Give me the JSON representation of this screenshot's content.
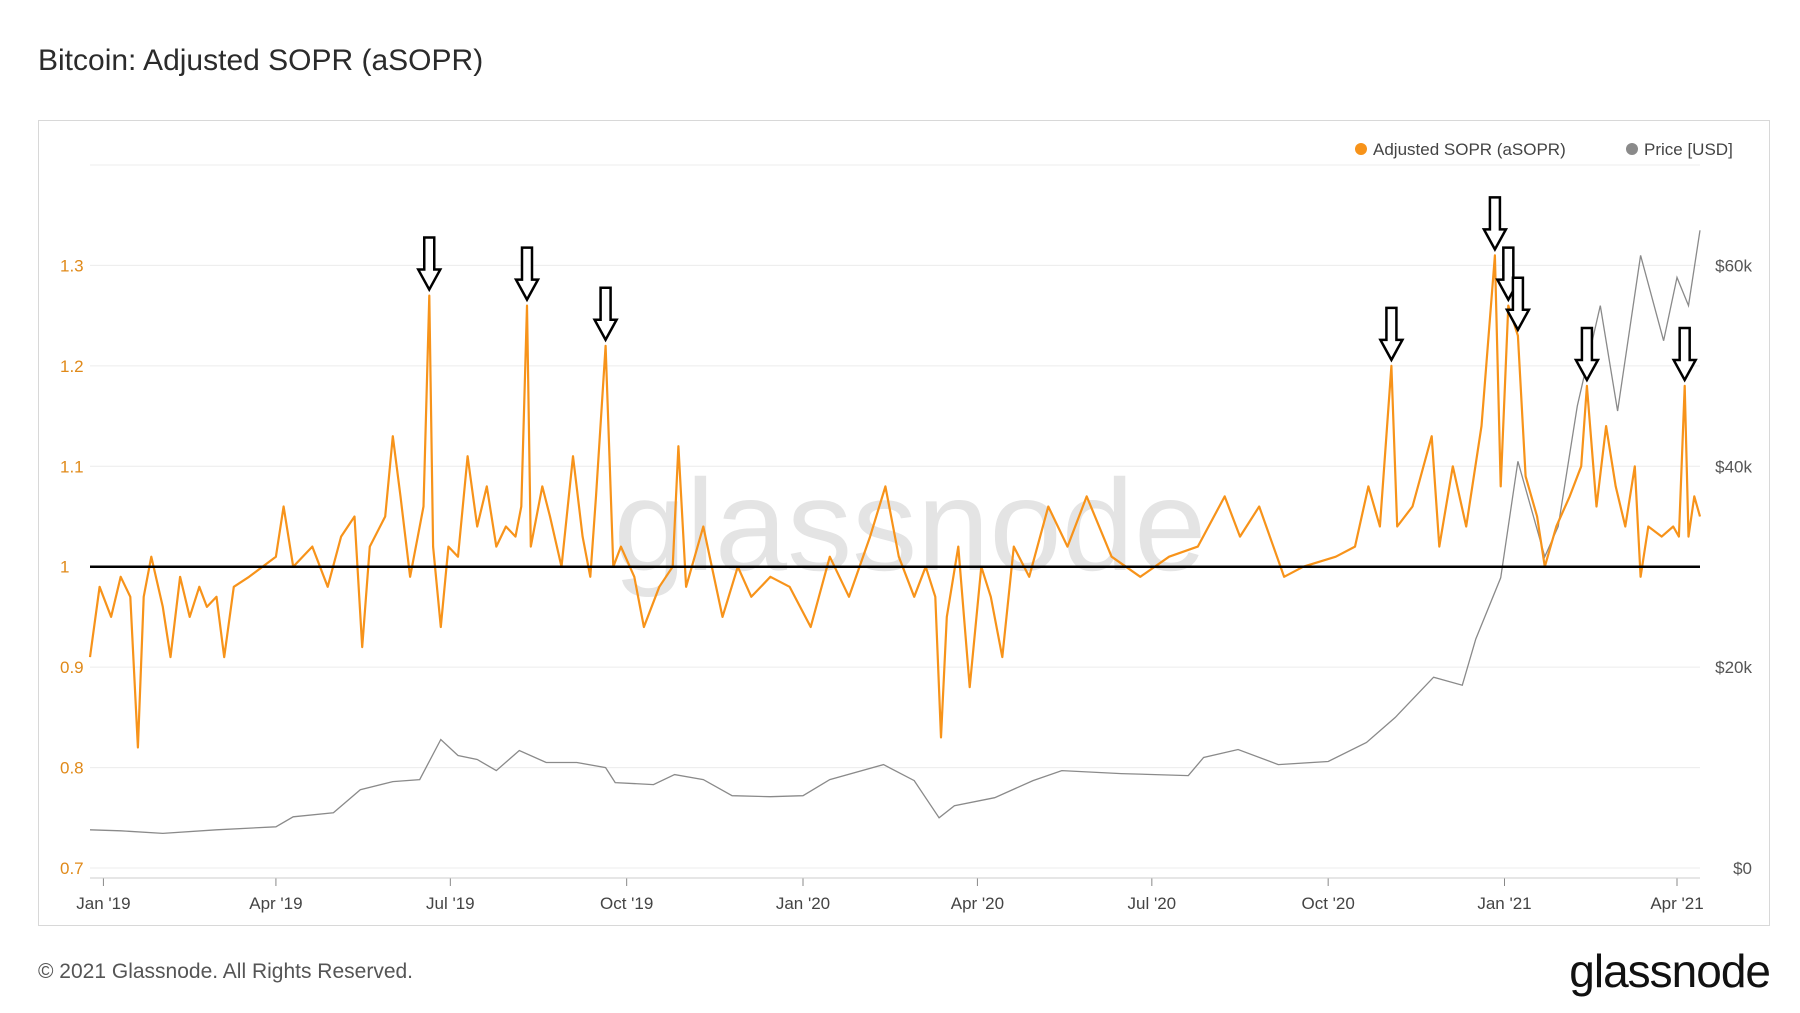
{
  "title": "Bitcoin: Adjusted SOPR (aSOPR)",
  "footer": "© 2021 Glassnode. All Rights Reserved.",
  "brand": "glassnode",
  "watermark": "glassnode",
  "colors": {
    "sopr": "#f7931a",
    "price": "#8a8a8a",
    "baseline": "#000000",
    "grid": "#ececec",
    "left_axis": "#e08a1a"
  },
  "chart_data": {
    "type": "line",
    "x_axis_labels": [
      "Jan '19",
      "Apr '19",
      "Jul '19",
      "Oct '19",
      "Jan '20",
      "Apr '20",
      "Jul '20",
      "Oct '20",
      "Jan '21",
      "Apr '21"
    ],
    "x_axis_dates": [
      "2019-01-01",
      "2019-04-01",
      "2019-07-01",
      "2019-10-01",
      "2020-01-01",
      "2020-04-01",
      "2020-07-01",
      "2020-10-01",
      "2021-01-01",
      "2021-04-01"
    ],
    "x_range": [
      "2018-12-25",
      "2021-04-13"
    ],
    "left_axis": {
      "ticks": [
        0.7,
        0.8,
        0.9,
        1,
        1.1,
        1.2,
        1.3
      ],
      "tick_labels": [
        "0.7",
        "0.8",
        "0.9",
        "1",
        "1.1",
        "1.2",
        "1.3"
      ],
      "range": [
        0.7,
        1.4
      ]
    },
    "right_axis": {
      "ticks": [
        0,
        20000,
        40000,
        60000
      ],
      "tick_labels": [
        "$0",
        "$20k",
        "$40k",
        "$60k"
      ],
      "range": [
        0,
        60000
      ]
    },
    "grid": true,
    "legend_position": "top-right",
    "reference_line": 1,
    "series": [
      {
        "name": "Adjusted SOPR (aSOPR)",
        "axis": "left",
        "points": [
          [
            "2018-12-25",
            0.91
          ],
          [
            "2018-12-30",
            0.98
          ],
          [
            "2019-01-05",
            0.95
          ],
          [
            "2019-01-10",
            0.99
          ],
          [
            "2019-01-15",
            0.97
          ],
          [
            "2019-01-19",
            0.82
          ],
          [
            "2019-01-22",
            0.97
          ],
          [
            "2019-01-26",
            1.01
          ],
          [
            "2019-02-01",
            0.96
          ],
          [
            "2019-02-05",
            0.91
          ],
          [
            "2019-02-10",
            0.99
          ],
          [
            "2019-02-15",
            0.95
          ],
          [
            "2019-02-20",
            0.98
          ],
          [
            "2019-02-24",
            0.96
          ],
          [
            "2019-03-01",
            0.97
          ],
          [
            "2019-03-05",
            0.91
          ],
          [
            "2019-03-10",
            0.98
          ],
          [
            "2019-03-18",
            0.99
          ],
          [
            "2019-03-25",
            1.0
          ],
          [
            "2019-04-01",
            1.01
          ],
          [
            "2019-04-05",
            1.06
          ],
          [
            "2019-04-10",
            1.0
          ],
          [
            "2019-04-20",
            1.02
          ],
          [
            "2019-04-28",
            0.98
          ],
          [
            "2019-05-05",
            1.03
          ],
          [
            "2019-05-12",
            1.05
          ],
          [
            "2019-05-16",
            0.92
          ],
          [
            "2019-05-20",
            1.02
          ],
          [
            "2019-05-28",
            1.05
          ],
          [
            "2019-06-01",
            1.13
          ],
          [
            "2019-06-05",
            1.07
          ],
          [
            "2019-06-10",
            0.99
          ],
          [
            "2019-06-14",
            1.03
          ],
          [
            "2019-06-17",
            1.06
          ],
          [
            "2019-06-20",
            1.27
          ],
          [
            "2019-06-22",
            1.02
          ],
          [
            "2019-06-26",
            0.94
          ],
          [
            "2019-06-30",
            1.02
          ],
          [
            "2019-07-05",
            1.01
          ],
          [
            "2019-07-10",
            1.11
          ],
          [
            "2019-07-15",
            1.04
          ],
          [
            "2019-07-20",
            1.08
          ],
          [
            "2019-07-25",
            1.02
          ],
          [
            "2019-07-30",
            1.04
          ],
          [
            "2019-08-04",
            1.03
          ],
          [
            "2019-08-07",
            1.06
          ],
          [
            "2019-08-10",
            1.26
          ],
          [
            "2019-08-12",
            1.02
          ],
          [
            "2019-08-18",
            1.08
          ],
          [
            "2019-08-22",
            1.05
          ],
          [
            "2019-08-28",
            1.0
          ],
          [
            "2019-09-03",
            1.11
          ],
          [
            "2019-09-08",
            1.03
          ],
          [
            "2019-09-12",
            0.99
          ],
          [
            "2019-09-15",
            1.07
          ],
          [
            "2019-09-20",
            1.22
          ],
          [
            "2019-09-24",
            1.0
          ],
          [
            "2019-09-28",
            1.02
          ],
          [
            "2019-10-05",
            0.99
          ],
          [
            "2019-10-10",
            0.94
          ],
          [
            "2019-10-18",
            0.98
          ],
          [
            "2019-10-25",
            1.0
          ],
          [
            "2019-10-28",
            1.12
          ],
          [
            "2019-11-01",
            0.98
          ],
          [
            "2019-11-10",
            1.04
          ],
          [
            "2019-11-20",
            0.95
          ],
          [
            "2019-11-28",
            1.0
          ],
          [
            "2019-12-05",
            0.97
          ],
          [
            "2019-12-15",
            0.99
          ],
          [
            "2019-12-25",
            0.98
          ],
          [
            "2020-01-05",
            0.94
          ],
          [
            "2020-01-15",
            1.01
          ],
          [
            "2020-01-25",
            0.97
          ],
          [
            "2020-02-05",
            1.03
          ],
          [
            "2020-02-13",
            1.08
          ],
          [
            "2020-02-20",
            1.01
          ],
          [
            "2020-02-28",
            0.97
          ],
          [
            "2020-03-05",
            1.0
          ],
          [
            "2020-03-10",
            0.97
          ],
          [
            "2020-03-13",
            0.83
          ],
          [
            "2020-03-16",
            0.95
          ],
          [
            "2020-03-22",
            1.02
          ],
          [
            "2020-03-28",
            0.88
          ],
          [
            "2020-04-03",
            1.0
          ],
          [
            "2020-04-08",
            0.97
          ],
          [
            "2020-04-14",
            0.91
          ],
          [
            "2020-04-20",
            1.02
          ],
          [
            "2020-04-28",
            0.99
          ],
          [
            "2020-05-08",
            1.06
          ],
          [
            "2020-05-18",
            1.02
          ],
          [
            "2020-05-28",
            1.07
          ],
          [
            "2020-06-10",
            1.01
          ],
          [
            "2020-06-25",
            0.99
          ],
          [
            "2020-07-10",
            1.01
          ],
          [
            "2020-07-25",
            1.02
          ],
          [
            "2020-08-08",
            1.07
          ],
          [
            "2020-08-16",
            1.03
          ],
          [
            "2020-08-26",
            1.06
          ],
          [
            "2020-09-08",
            0.99
          ],
          [
            "2020-09-18",
            1.0
          ],
          [
            "2020-10-05",
            1.01
          ],
          [
            "2020-10-15",
            1.02
          ],
          [
            "2020-10-22",
            1.08
          ],
          [
            "2020-10-28",
            1.04
          ],
          [
            "2020-11-03",
            1.2
          ],
          [
            "2020-11-06",
            1.04
          ],
          [
            "2020-11-14",
            1.06
          ],
          [
            "2020-11-24",
            1.13
          ],
          [
            "2020-11-28",
            1.02
          ],
          [
            "2020-12-05",
            1.1
          ],
          [
            "2020-12-12",
            1.04
          ],
          [
            "2020-12-20",
            1.14
          ],
          [
            "2020-12-27",
            1.31
          ],
          [
            "2020-12-30",
            1.08
          ],
          [
            "2021-01-03",
            1.26
          ],
          [
            "2021-01-08",
            1.23
          ],
          [
            "2021-01-12",
            1.09
          ],
          [
            "2021-01-18",
            1.05
          ],
          [
            "2021-01-22",
            1.0
          ],
          [
            "2021-01-28",
            1.04
          ],
          [
            "2021-02-04",
            1.07
          ],
          [
            "2021-02-10",
            1.1
          ],
          [
            "2021-02-13",
            1.18
          ],
          [
            "2021-02-18",
            1.06
          ],
          [
            "2021-02-23",
            1.14
          ],
          [
            "2021-02-28",
            1.08
          ],
          [
            "2021-03-05",
            1.04
          ],
          [
            "2021-03-10",
            1.1
          ],
          [
            "2021-03-13",
            0.99
          ],
          [
            "2021-03-17",
            1.04
          ],
          [
            "2021-03-24",
            1.03
          ],
          [
            "2021-03-30",
            1.04
          ],
          [
            "2021-04-02",
            1.03
          ],
          [
            "2021-04-05",
            1.18
          ],
          [
            "2021-04-07",
            1.03
          ],
          [
            "2021-04-10",
            1.07
          ],
          [
            "2021-04-13",
            1.05
          ]
        ]
      },
      {
        "name": "Price [USD]",
        "axis": "right",
        "points": [
          [
            "2018-12-25",
            3800
          ],
          [
            "2019-01-10",
            3700
          ],
          [
            "2019-02-01",
            3450
          ],
          [
            "2019-03-01",
            3800
          ],
          [
            "2019-04-01",
            4100
          ],
          [
            "2019-04-10",
            5100
          ],
          [
            "2019-05-01",
            5500
          ],
          [
            "2019-05-15",
            7800
          ],
          [
            "2019-06-01",
            8600
          ],
          [
            "2019-06-15",
            8800
          ],
          [
            "2019-06-26",
            12800
          ],
          [
            "2019-07-05",
            11200
          ],
          [
            "2019-07-15",
            10800
          ],
          [
            "2019-07-25",
            9700
          ],
          [
            "2019-08-06",
            11700
          ],
          [
            "2019-08-20",
            10500
          ],
          [
            "2019-09-05",
            10500
          ],
          [
            "2019-09-20",
            10000
          ],
          [
            "2019-09-25",
            8500
          ],
          [
            "2019-10-15",
            8300
          ],
          [
            "2019-10-26",
            9300
          ],
          [
            "2019-11-10",
            8800
          ],
          [
            "2019-11-25",
            7200
          ],
          [
            "2019-12-15",
            7100
          ],
          [
            "2020-01-01",
            7200
          ],
          [
            "2020-01-15",
            8800
          ],
          [
            "2020-02-12",
            10300
          ],
          [
            "2020-02-28",
            8700
          ],
          [
            "2020-03-12",
            5000
          ],
          [
            "2020-03-20",
            6200
          ],
          [
            "2020-04-10",
            7000
          ],
          [
            "2020-04-30",
            8700
          ],
          [
            "2020-05-15",
            9700
          ],
          [
            "2020-06-15",
            9400
          ],
          [
            "2020-07-20",
            9200
          ],
          [
            "2020-07-28",
            11000
          ],
          [
            "2020-08-15",
            11800
          ],
          [
            "2020-09-05",
            10300
          ],
          [
            "2020-10-01",
            10600
          ],
          [
            "2020-10-21",
            12500
          ],
          [
            "2020-11-05",
            15000
          ],
          [
            "2020-11-25",
            19000
          ],
          [
            "2020-12-10",
            18200
          ],
          [
            "2020-12-17",
            22800
          ],
          [
            "2020-12-30",
            28900
          ],
          [
            "2021-01-08",
            40500
          ],
          [
            "2021-01-22",
            31000
          ],
          [
            "2021-01-29",
            34000
          ],
          [
            "2021-02-08",
            46000
          ],
          [
            "2021-02-20",
            56000
          ],
          [
            "2021-03-01",
            45500
          ],
          [
            "2021-03-13",
            61000
          ],
          [
            "2021-03-25",
            52500
          ],
          [
            "2021-04-01",
            58800
          ],
          [
            "2021-04-07",
            56000
          ],
          [
            "2021-04-13",
            63500
          ]
        ]
      }
    ]
  }
}
